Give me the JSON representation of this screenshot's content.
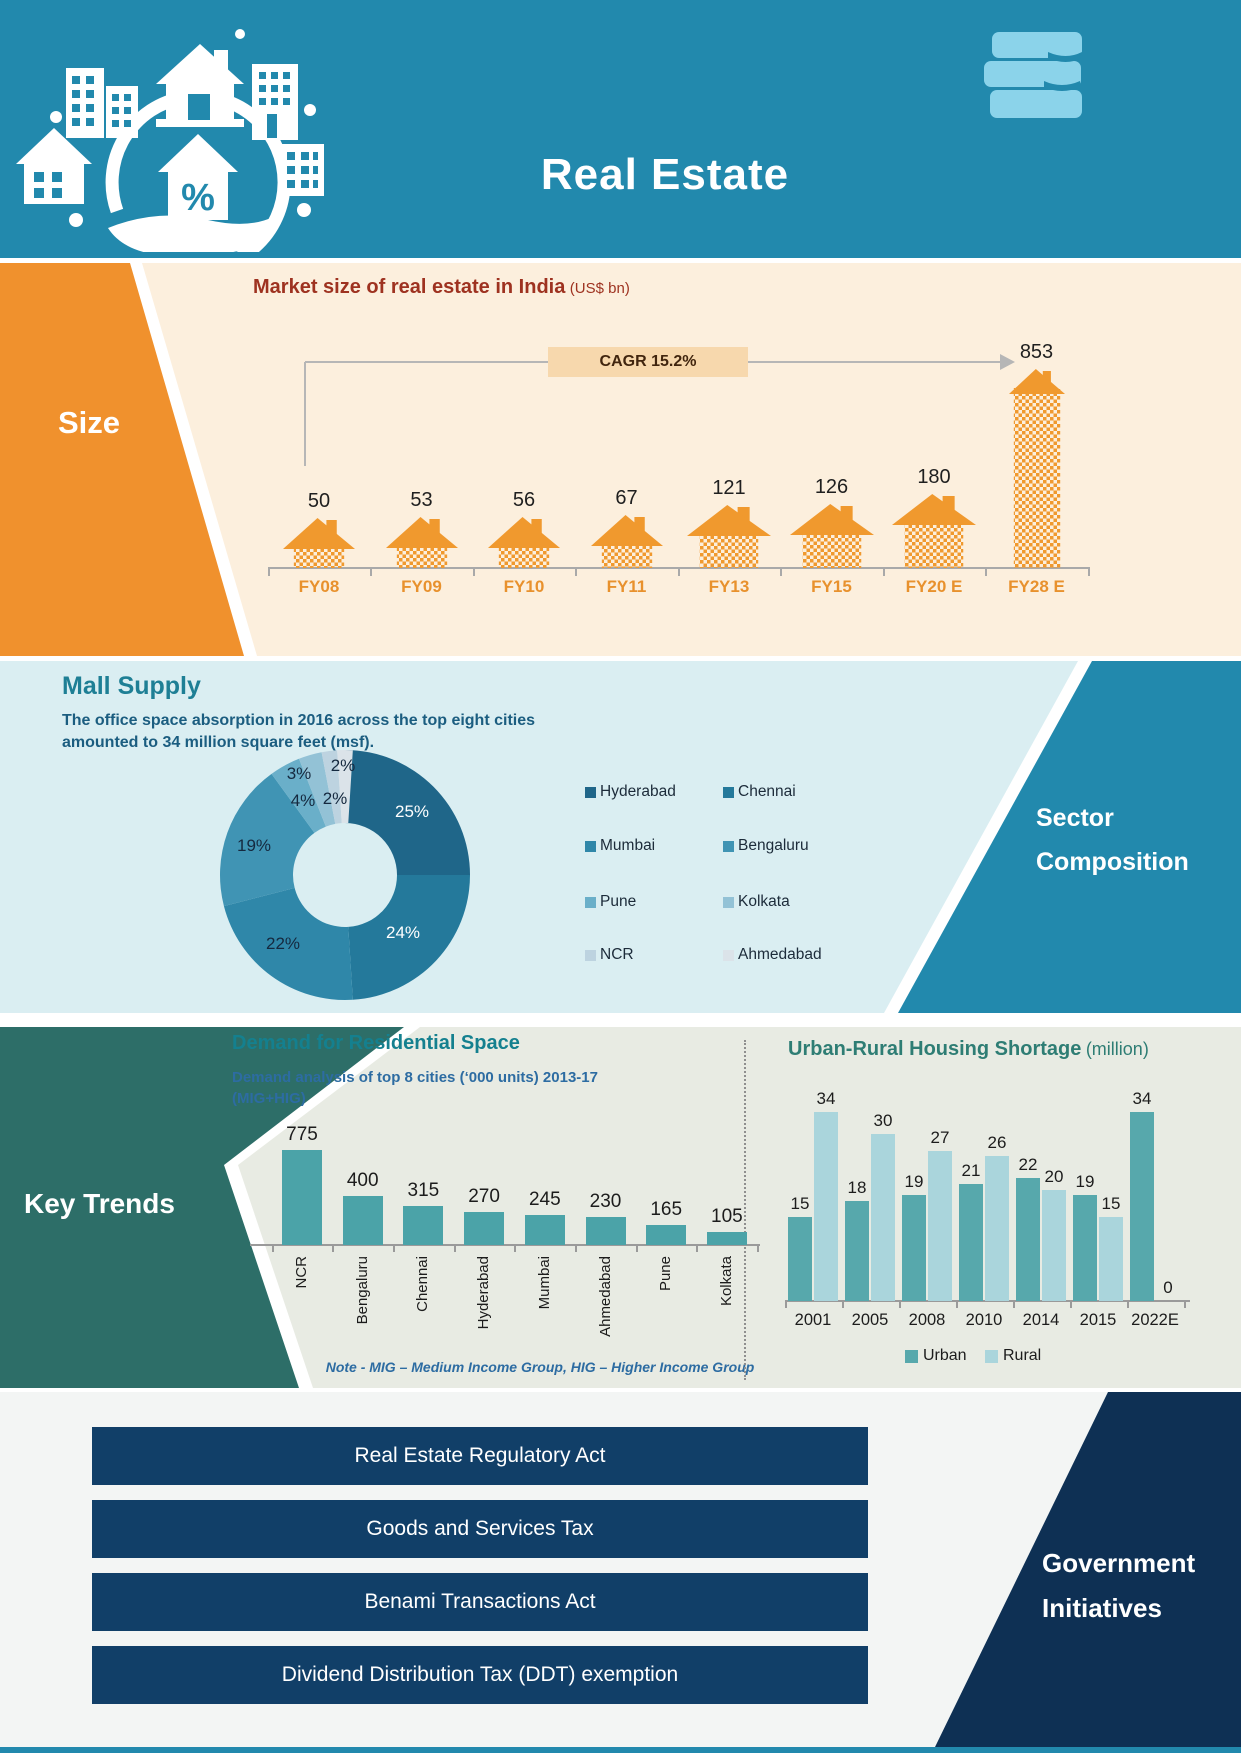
{
  "header": {
    "title": "Real Estate"
  },
  "size_section": {
    "label": "Size",
    "chart_title": "Market size of real estate in India",
    "chart_title_unit": "(US$ bn)",
    "cagr_label": "CAGR 15.2%",
    "chart_data": {
      "type": "bar",
      "title": "Market size of real estate in India (US$ bn)",
      "categories": [
        "FY08",
        "FY09",
        "FY10",
        "FY11",
        "FY13",
        "FY15",
        "FY20 E",
        "FY28 E"
      ],
      "values": [
        50,
        53,
        56,
        67,
        121,
        126,
        180,
        853
      ],
      "cagr_pct": 15.2
    }
  },
  "mall_section": {
    "title": "Mall Supply",
    "subtitle_line1": "The office space absorption in 2016 across the top eight cities",
    "subtitle_line2": "amounted to 34 million square feet (msf).",
    "panel_label_line1": "Sector",
    "panel_label_line2": "Composition",
    "chart_data": {
      "type": "pie",
      "labels": [
        "Hyderabad",
        "Chennai",
        "Mumbai",
        "Bengaluru",
        "Pune",
        "Kolkata",
        "NCR",
        "Ahmedabad"
      ],
      "values_pct": [
        25,
        24,
        22,
        19,
        4,
        3,
        2,
        2
      ],
      "colors": [
        "#1f6689",
        "#24799b",
        "#2f87a9",
        "#4094b4",
        "#6aafc9",
        "#93c2d6",
        "#bdd3e0",
        "#dbe3e9"
      ],
      "legend_position": "right"
    }
  },
  "key_trends": {
    "label": "Key Trends",
    "demand_chart": {
      "title": "Demand for Residential Space",
      "subtitle_line1": "Demand analysis of top 8 cities (‘000 units) 2013-17",
      "subtitle_line2": "(MIG+HIG)",
      "note": "Note - MIG – Medium Income Group, HIG – Higher Income Group",
      "chart_data": {
        "type": "bar",
        "categories": [
          "NCR",
          "Bengaluru",
          "Chennai",
          "Hyderabad",
          "Mumbai",
          "Ahmedabad",
          "Pune",
          "Kolkata"
        ],
        "values": [
          775,
          400,
          315,
          270,
          245,
          230,
          165,
          105
        ],
        "bar_color": "#4ba3a8"
      }
    },
    "shortage_chart": {
      "title": "Urban-Rural Housing Shortage",
      "title_unit": "(million)",
      "chart_data": {
        "type": "bar",
        "categories": [
          "2001",
          "2005",
          "2008",
          "2010",
          "2014",
          "2015",
          "2022E"
        ],
        "series": [
          {
            "name": "Urban",
            "color": "#57a8ac",
            "values": [
              15,
              18,
              19,
              21,
              22,
              19,
              34
            ]
          },
          {
            "name": "Rural",
            "color": "#aad5dc",
            "values": [
              34,
              30,
              27,
              26,
              20,
              15,
              0
            ]
          }
        ],
        "legend_position": "bottom"
      }
    }
  },
  "gov_section": {
    "panel_label_line1": "Government",
    "panel_label_line2": "Initiatives",
    "items": [
      "Real Estate Regulatory Act",
      "Goods and Services Tax",
      "Benami Transactions Act",
      "Dividend Distribution Tax (DDT) exemption"
    ]
  },
  "colors": {
    "header_bg": "#2289ad",
    "size_panel": "#f0912d",
    "size_bg": "#fcefdd",
    "size_title": "#9e3220",
    "fy_label": "#e8912d",
    "cagr_box_bg": "#f7d8ad",
    "house": "#f0992e",
    "mall_bg": "#daeef2",
    "mall_title": "#1e7f95",
    "sector_panel": "#2289ad",
    "key_trends_bg": "#e8ebe3",
    "key_trends_panel": "#2d6e68",
    "demand_title": "#14808f",
    "subtitle_blue": "#2d6ca2",
    "shortage_title": "#2e7d74",
    "gov_bar": "#113f68",
    "gov_panel": "#0e3054",
    "bottom_strip": "#2289ad",
    "axis_grey": "#a9a9a9"
  }
}
